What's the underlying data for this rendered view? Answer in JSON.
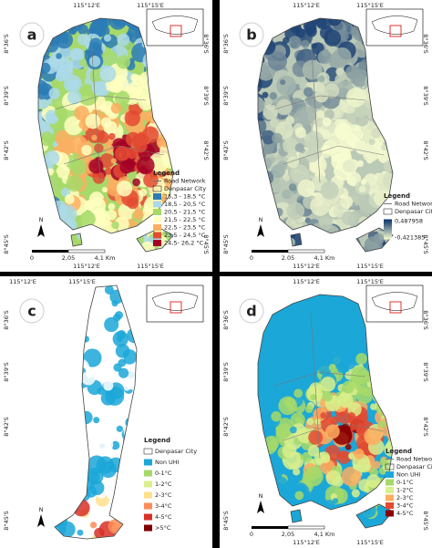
{
  "panels": [
    {
      "label": "a",
      "lon_top": [
        "115°12'E",
        "115°15'E"
      ],
      "lon_bottom": [
        "115°12'E",
        "115°15'E"
      ],
      "lat_left": [
        "8°36'S",
        "8°39'S",
        "8°42'S",
        "8°45'S"
      ],
      "lat_right": [
        "8°36'S",
        "8°39'S",
        "8°42'S",
        "8°45'S"
      ],
      "legend": {
        "title": "Legend",
        "road": "Road Network",
        "city": "Denpasar City",
        "items": [
          {
            "label": "15,3 - 18,5 °C",
            "color": "#2c7bb6"
          },
          {
            "label": "18,5 - 20,5 °C",
            "color": "#abd9e9"
          },
          {
            "label": "20,5 - 21,5 °C",
            "color": "#a6d96a"
          },
          {
            "label": "21,5 - 22,5 °C",
            "color": "#ffffbf"
          },
          {
            "label": "22,5 - 23,5 °C",
            "color": "#fdae61"
          },
          {
            "label": "23,5 - 24,5 °C",
            "color": "#e34a33"
          },
          {
            "label": "24,5- 26,2 °C",
            "color": "#a50026"
          }
        ]
      },
      "scale": [
        "0",
        "2,05",
        "4,1 Km"
      ],
      "north": "N"
    },
    {
      "label": "b",
      "lon_top": [
        "115°12'E",
        "115°15'E"
      ],
      "lon_bottom": [
        "115°12'E",
        "115°15'E"
      ],
      "lat_left": [
        "8°36'S",
        "8°39'S",
        "8°42'S",
        "8°45'S"
      ],
      "lat_right": [
        "8°36'S",
        "8°39'S",
        "8°42'S",
        "8°45'S"
      ],
      "legend": {
        "title": "Legend",
        "road": "Road Network",
        "city": "Denpasar City",
        "ramp": {
          "high": "0,487958",
          "low": "-0,421385",
          "colors": [
            "#08306b",
            "#f7fcd0"
          ]
        }
      },
      "scale": [
        "0",
        "2.05",
        "4,1 Km"
      ],
      "north": "N"
    },
    {
      "label": "c",
      "lon_top": [
        "115°12'E",
        "115°15'E"
      ],
      "lat_left": [
        "8°36'S",
        "8°39'S",
        "8°42'S",
        "8°45'S"
      ],
      "legend": {
        "title": "Legend",
        "city": "Denpasar City",
        "items": [
          {
            "label": "Non UHI",
            "color": "#1ba7d8"
          },
          {
            "label": "0-1°C",
            "color": "#a6d96a"
          },
          {
            "label": "1-2°C",
            "color": "#d9ef8b"
          },
          {
            "label": "2-3°C",
            "color": "#fee08b"
          },
          {
            "label": "3-4°C",
            "color": "#fc8d59"
          },
          {
            "label": "4-5°C",
            "color": "#d73027"
          },
          {
            "label": ">5°C",
            "color": "#7f0000"
          }
        ]
      },
      "north": "N"
    },
    {
      "label": "d",
      "lon_top": [
        "115°12'E",
        "115°15'E"
      ],
      "lon_bottom": [
        "115°12'E",
        "115°15'E"
      ],
      "lat_left": [
        "8°36'S",
        "8°39'S",
        "8°42'S",
        "8°45'S"
      ],
      "lat_right": [
        "8°36'S",
        "8°39'S",
        "8°42'S",
        "8°45'S"
      ],
      "legend": {
        "title": "Legend",
        "road": "Road Network",
        "city": "Denpasar City",
        "items": [
          {
            "label": "Non UHI",
            "color": "#1ba7d8"
          },
          {
            "label": "0-1°C",
            "color": "#a6d96a"
          },
          {
            "label": "1-2°C",
            "color": "#d9ef8b"
          },
          {
            "label": "2-3°C",
            "color": "#fdae61"
          },
          {
            "label": "3-4°C",
            "color": "#e34a33"
          },
          {
            "label": "4-5°C",
            "color": "#8b0000"
          }
        ]
      },
      "scale": [
        "0",
        "2,05",
        "4,1 Km"
      ],
      "north": "N"
    }
  ]
}
